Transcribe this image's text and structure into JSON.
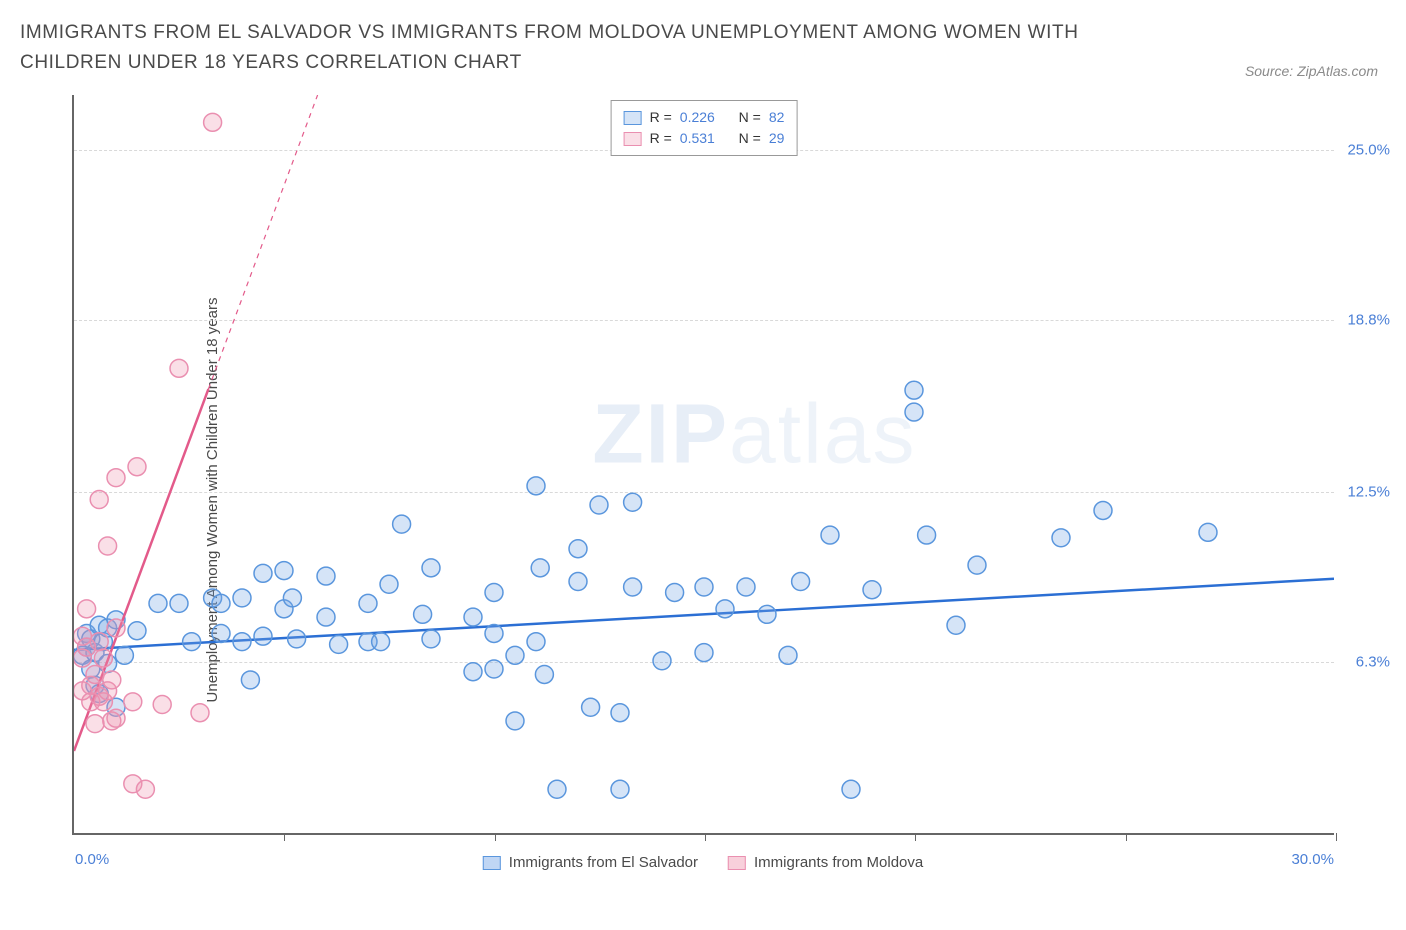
{
  "header": {
    "title": "IMMIGRANTS FROM EL SALVADOR VS IMMIGRANTS FROM MOLDOVA UNEMPLOYMENT AMONG WOMEN WITH CHILDREN UNDER 18 YEARS CORRELATION CHART",
    "source": "Source: ZipAtlas.com"
  },
  "watermark": {
    "bold": "ZIP",
    "light": "atlas"
  },
  "chart": {
    "type": "scatter",
    "ylabel": "Unemployment Among Women with Children Under 18 years",
    "xlim": [
      0,
      30
    ],
    "ylim": [
      0,
      27
    ],
    "xtick_positions": [
      5,
      10,
      15,
      20,
      25,
      30
    ],
    "x_left_label": "0.0%",
    "x_right_label": "30.0%",
    "y_grid": [
      {
        "val": 6.3,
        "label": "6.3%"
      },
      {
        "val": 12.5,
        "label": "12.5%"
      },
      {
        "val": 18.8,
        "label": "18.8%"
      },
      {
        "val": 25.0,
        "label": "25.0%"
      }
    ],
    "background_color": "#ffffff",
    "grid_color": "#d9d9d9",
    "axis_color": "#666666",
    "tick_label_color": "#4a7fd6",
    "marker_radius": 9,
    "marker_stroke_width": 1.5,
    "line_width": 2.5,
    "series": [
      {
        "name": "Immigrants from El Salvador",
        "fill": "rgba(115,165,230,0.30)",
        "stroke": "#5a96dd",
        "line_color": "#2b6fd4",
        "R": "0.226",
        "N": "82",
        "trend": {
          "x1": 0,
          "y1": 6.7,
          "x2": 30,
          "y2": 9.3
        },
        "points": [
          [
            0.2,
            6.5
          ],
          [
            0.3,
            7.3
          ],
          [
            0.3,
            6.8
          ],
          [
            0.4,
            6.0
          ],
          [
            0.4,
            7.1
          ],
          [
            0.5,
            5.4
          ],
          [
            0.5,
            6.6
          ],
          [
            0.6,
            7.6
          ],
          [
            0.6,
            5.1
          ],
          [
            0.7,
            7.0
          ],
          [
            0.8,
            7.5
          ],
          [
            0.8,
            6.2
          ],
          [
            1.0,
            4.6
          ],
          [
            1.0,
            7.8
          ],
          [
            1.2,
            6.5
          ],
          [
            1.5,
            7.4
          ],
          [
            2.0,
            8.4
          ],
          [
            2.5,
            8.4
          ],
          [
            2.8,
            7.0
          ],
          [
            3.3,
            8.6
          ],
          [
            3.5,
            7.3
          ],
          [
            3.5,
            8.4
          ],
          [
            4.0,
            7.0
          ],
          [
            4.0,
            8.6
          ],
          [
            4.2,
            5.6
          ],
          [
            4.5,
            9.5
          ],
          [
            4.5,
            7.2
          ],
          [
            5.0,
            9.6
          ],
          [
            5.0,
            8.2
          ],
          [
            5.2,
            8.6
          ],
          [
            5.3,
            7.1
          ],
          [
            6.0,
            7.9
          ],
          [
            6.0,
            9.4
          ],
          [
            6.3,
            6.9
          ],
          [
            7.0,
            8.4
          ],
          [
            7.0,
            7.0
          ],
          [
            7.3,
            7.0
          ],
          [
            7.5,
            9.1
          ],
          [
            7.8,
            11.3
          ],
          [
            8.3,
            8.0
          ],
          [
            8.5,
            7.1
          ],
          [
            8.5,
            9.7
          ],
          [
            9.5,
            5.9
          ],
          [
            9.5,
            7.9
          ],
          [
            10.0,
            8.8
          ],
          [
            10.0,
            6.0
          ],
          [
            10.0,
            7.3
          ],
          [
            10.5,
            6.5
          ],
          [
            10.5,
            4.1
          ],
          [
            11.0,
            12.7
          ],
          [
            11.0,
            7.0
          ],
          [
            11.1,
            9.7
          ],
          [
            11.2,
            5.8
          ],
          [
            11.5,
            1.6
          ],
          [
            12.0,
            9.2
          ],
          [
            12.0,
            10.4
          ],
          [
            12.3,
            4.6
          ],
          [
            12.5,
            12.0
          ],
          [
            13.0,
            4.4
          ],
          [
            13.0,
            1.6
          ],
          [
            13.3,
            9.0
          ],
          [
            13.3,
            12.1
          ],
          [
            14.0,
            6.3
          ],
          [
            14.3,
            8.8
          ],
          [
            15.0,
            6.6
          ],
          [
            15.0,
            9.0
          ],
          [
            15.5,
            8.2
          ],
          [
            16.0,
            9.0
          ],
          [
            16.5,
            8.0
          ],
          [
            17.0,
            6.5
          ],
          [
            17.3,
            9.2
          ],
          [
            18.0,
            10.9
          ],
          [
            18.5,
            1.6
          ],
          [
            19.0,
            8.9
          ],
          [
            20.0,
            16.2
          ],
          [
            20.0,
            15.4
          ],
          [
            20.3,
            10.9
          ],
          [
            21.0,
            7.6
          ],
          [
            21.5,
            9.8
          ],
          [
            23.5,
            10.8
          ],
          [
            24.5,
            11.8
          ],
          [
            27.0,
            11.0
          ]
        ]
      },
      {
        "name": "Immigrants from Moldova",
        "fill": "rgba(240,150,175,0.30)",
        "stroke": "#ea8fb0",
        "line_color": "#e35a8a",
        "R": "0.531",
        "N": "29",
        "trend": {
          "x1": 0,
          "y1": 3.0,
          "x2": 5.8,
          "y2": 27
        },
        "trend_dash_from_x": 3.2,
        "points": [
          [
            0.2,
            7.2
          ],
          [
            0.2,
            6.4
          ],
          [
            0.2,
            5.2
          ],
          [
            0.3,
            8.2
          ],
          [
            0.3,
            6.8
          ],
          [
            0.4,
            4.8
          ],
          [
            0.4,
            5.4
          ],
          [
            0.5,
            5.8
          ],
          [
            0.5,
            4.0
          ],
          [
            0.6,
            7.0
          ],
          [
            0.6,
            5.0
          ],
          [
            0.6,
            12.2
          ],
          [
            0.7,
            6.4
          ],
          [
            0.7,
            4.8
          ],
          [
            0.8,
            10.5
          ],
          [
            0.8,
            5.2
          ],
          [
            0.9,
            4.1
          ],
          [
            0.9,
            5.6
          ],
          [
            1.0,
            13.0
          ],
          [
            1.0,
            4.2
          ],
          [
            1.0,
            7.5
          ],
          [
            1.4,
            1.8
          ],
          [
            1.4,
            4.8
          ],
          [
            1.5,
            13.4
          ],
          [
            1.7,
            1.6
          ],
          [
            2.1,
            4.7
          ],
          [
            2.5,
            17.0
          ],
          [
            3.0,
            4.4
          ],
          [
            3.3,
            26.0
          ]
        ]
      }
    ],
    "legend_bottom": [
      {
        "label": "Immigrants from El Salvador",
        "fill": "rgba(115,165,230,0.45)",
        "stroke": "#5a96dd"
      },
      {
        "label": "Immigrants from Moldova",
        "fill": "rgba(240,150,175,0.45)",
        "stroke": "#ea8fb0"
      }
    ]
  }
}
